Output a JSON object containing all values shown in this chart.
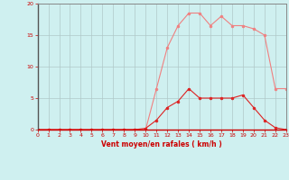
{
  "x": [
    0,
    1,
    2,
    3,
    4,
    5,
    6,
    7,
    8,
    9,
    10,
    11,
    12,
    13,
    14,
    15,
    16,
    17,
    18,
    19,
    20,
    21,
    22,
    23
  ],
  "rafales": [
    0,
    0,
    0,
    0,
    0,
    0,
    0,
    0,
    0,
    0,
    0,
    6.5,
    13,
    16.5,
    18.5,
    18.5,
    16.5,
    18,
    16.5,
    16.5,
    16,
    15,
    6.5,
    6.5
  ],
  "moyen": [
    0,
    0,
    0,
    0,
    0,
    0,
    0,
    0,
    0,
    0,
    0.2,
    1.5,
    3.5,
    4.5,
    6.5,
    5,
    5,
    5,
    5,
    5.5,
    3.5,
    1.5,
    0.3,
    0
  ],
  "line_color_rafales": "#f08080",
  "line_color_moyen": "#dd2222",
  "bg_color": "#cff0f0",
  "grid_color": "#b0c8c8",
  "xlabel": "Vent moyen/en rafales ( km/h )",
  "xlabel_color": "#cc0000",
  "tick_color": "#cc0000",
  "ylim": [
    0,
    20
  ],
  "xlim": [
    0,
    23
  ],
  "yticks": [
    0,
    5,
    10,
    15,
    20
  ],
  "xticks": [
    0,
    1,
    2,
    3,
    4,
    5,
    6,
    7,
    8,
    9,
    10,
    11,
    12,
    13,
    14,
    15,
    16,
    17,
    18,
    19,
    20,
    21,
    22,
    23
  ]
}
